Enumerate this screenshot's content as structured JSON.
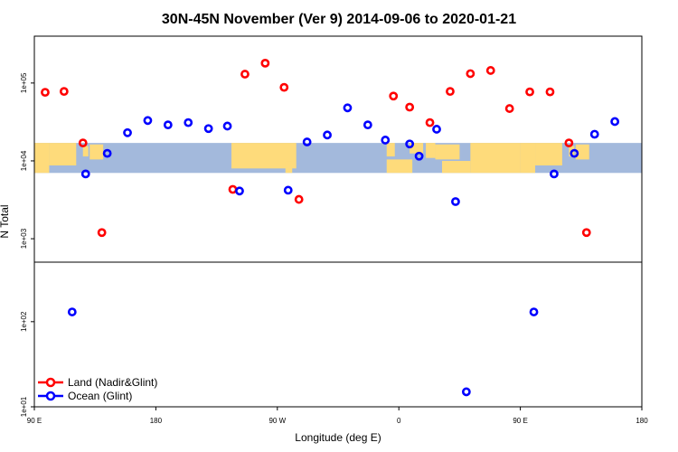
{
  "chart_data": {
    "type": "scatter",
    "title": "30N-45N November (Ver 9)   2014-09-06 to 2020-01-21",
    "xlabel": "Longitude (deg E)",
    "ylabel": "N Total",
    "xlim": [
      90,
      540
    ],
    "x_ticks": [
      {
        "value": 90,
        "label": "90 E"
      },
      {
        "value": 180,
        "label": "180"
      },
      {
        "value": 270,
        "label": "90 W"
      },
      {
        "value": 360,
        "label": "0"
      },
      {
        "value": 450,
        "label": "90 E"
      },
      {
        "value": 540,
        "label": "180"
      }
    ],
    "y_scale": "log",
    "ylim": [
      10,
      400000
    ],
    "y_ticks": [
      {
        "value": 10,
        "label": "1e+01"
      },
      {
        "value": 100,
        "label": "1e+02"
      },
      {
        "value": 1000,
        "label": "1e+03"
      },
      {
        "value": 10000,
        "label": "1e+04"
      },
      {
        "value": 100000,
        "label": "1e+05"
      }
    ],
    "panel_split_y": 500,
    "map_band": {
      "lon_start": 90,
      "lon_end": 540,
      "y_low": 7000,
      "y_high": 17000,
      "ocean_color": "#a3b9dc",
      "land_color": "#fedb7b"
    },
    "legend": {
      "position": "bottom-left"
    },
    "series": [
      {
        "name": "Land (Nadir&Glint)",
        "color": "#ff0000",
        "points": [
          {
            "x": 98,
            "y": 76000
          },
          {
            "x": 112,
            "y": 78000
          },
          {
            "x": 126,
            "y": 17000
          },
          {
            "x": 140,
            "y": 1200
          },
          {
            "x": 237,
            "y": 4300
          },
          {
            "x": 246,
            "y": 130000
          },
          {
            "x": 261,
            "y": 180000
          },
          {
            "x": 275,
            "y": 88000
          },
          {
            "x": 286,
            "y": 3200
          },
          {
            "x": 356,
            "y": 68000
          },
          {
            "x": 368,
            "y": 49000
          },
          {
            "x": 383,
            "y": 31000
          },
          {
            "x": 398,
            "y": 78000
          },
          {
            "x": 413,
            "y": 132000
          },
          {
            "x": 428,
            "y": 145000
          },
          {
            "x": 442,
            "y": 47000
          },
          {
            "x": 457,
            "y": 77000
          },
          {
            "x": 472,
            "y": 77000
          },
          {
            "x": 486,
            "y": 17000
          },
          {
            "x": 499,
            "y": 1200
          }
        ]
      },
      {
        "name": "Ocean (Glint)",
        "color": "#0000ff",
        "points": [
          {
            "x": 118,
            "y": 130
          },
          {
            "x": 128,
            "y": 6800
          },
          {
            "x": 144,
            "y": 12500
          },
          {
            "x": 159,
            "y": 23000
          },
          {
            "x": 174,
            "y": 33000
          },
          {
            "x": 189,
            "y": 29000
          },
          {
            "x": 204,
            "y": 31000
          },
          {
            "x": 219,
            "y": 26000
          },
          {
            "x": 233,
            "y": 28000
          },
          {
            "x": 242,
            "y": 4100
          },
          {
            "x": 278,
            "y": 4200
          },
          {
            "x": 292,
            "y": 17500
          },
          {
            "x": 307,
            "y": 21500
          },
          {
            "x": 322,
            "y": 48000
          },
          {
            "x": 337,
            "y": 29000
          },
          {
            "x": 350,
            "y": 18500
          },
          {
            "x": 368,
            "y": 16500
          },
          {
            "x": 375,
            "y": 11500
          },
          {
            "x": 388,
            "y": 25500
          },
          {
            "x": 402,
            "y": 3000
          },
          {
            "x": 410,
            "y": 15
          },
          {
            "x": 460,
            "y": 130
          },
          {
            "x": 475,
            "y": 6800
          },
          {
            "x": 490,
            "y": 12500
          },
          {
            "x": 505,
            "y": 22000
          },
          {
            "x": 520,
            "y": 32000
          }
        ]
      }
    ]
  }
}
